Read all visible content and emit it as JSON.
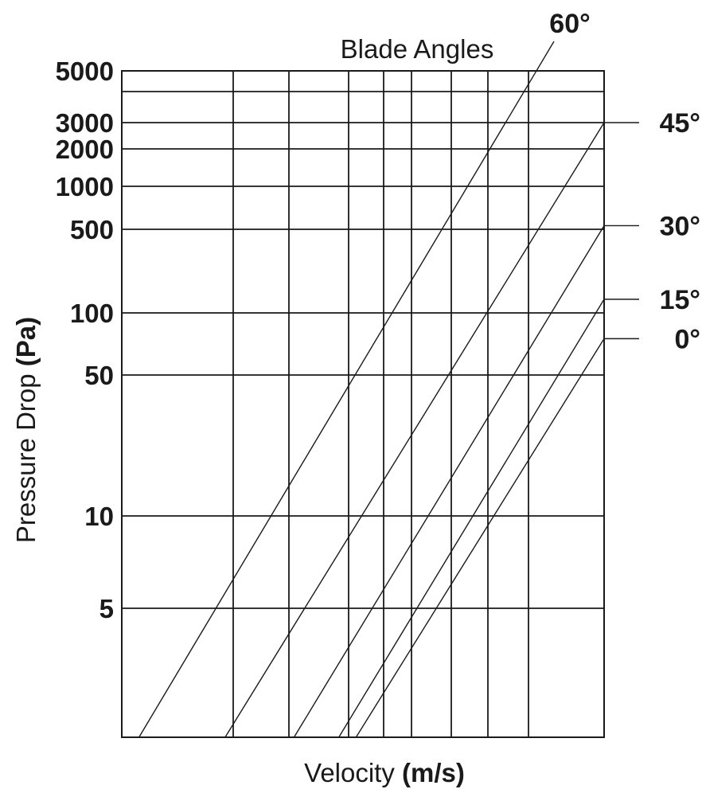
{
  "chart_data": {
    "type": "line",
    "title": "Blade Angles",
    "xlabel_main": "Velocity",
    "xlabel_unit": "(m/s)",
    "ylabel_main": "Pressure Drop",
    "ylabel_unit": "(Pa)",
    "y_scale": "log",
    "y_ticks": [
      "5000",
      "3000",
      "2000",
      "1000",
      "500",
      "100",
      "50",
      "10",
      "5"
    ],
    "grid": true,
    "series": [
      {
        "name": "60°",
        "points": [
          [
            0.5,
            1.9
          ],
          [
            12.0,
            4900
          ]
        ]
      },
      {
        "name": "45°",
        "points": [
          [
            3.0,
            1.9
          ],
          [
            14.0,
            3000
          ]
        ]
      },
      {
        "name": "30°",
        "points": [
          [
            5.0,
            1.9
          ],
          [
            14.0,
            530
          ]
        ]
      },
      {
        "name": "15°",
        "points": [
          [
            6.3,
            1.9
          ],
          [
            14.0,
            130
          ]
        ]
      },
      {
        "name": "0°",
        "points": [
          [
            6.8,
            1.9
          ],
          [
            14.0,
            75
          ]
        ]
      }
    ]
  }
}
